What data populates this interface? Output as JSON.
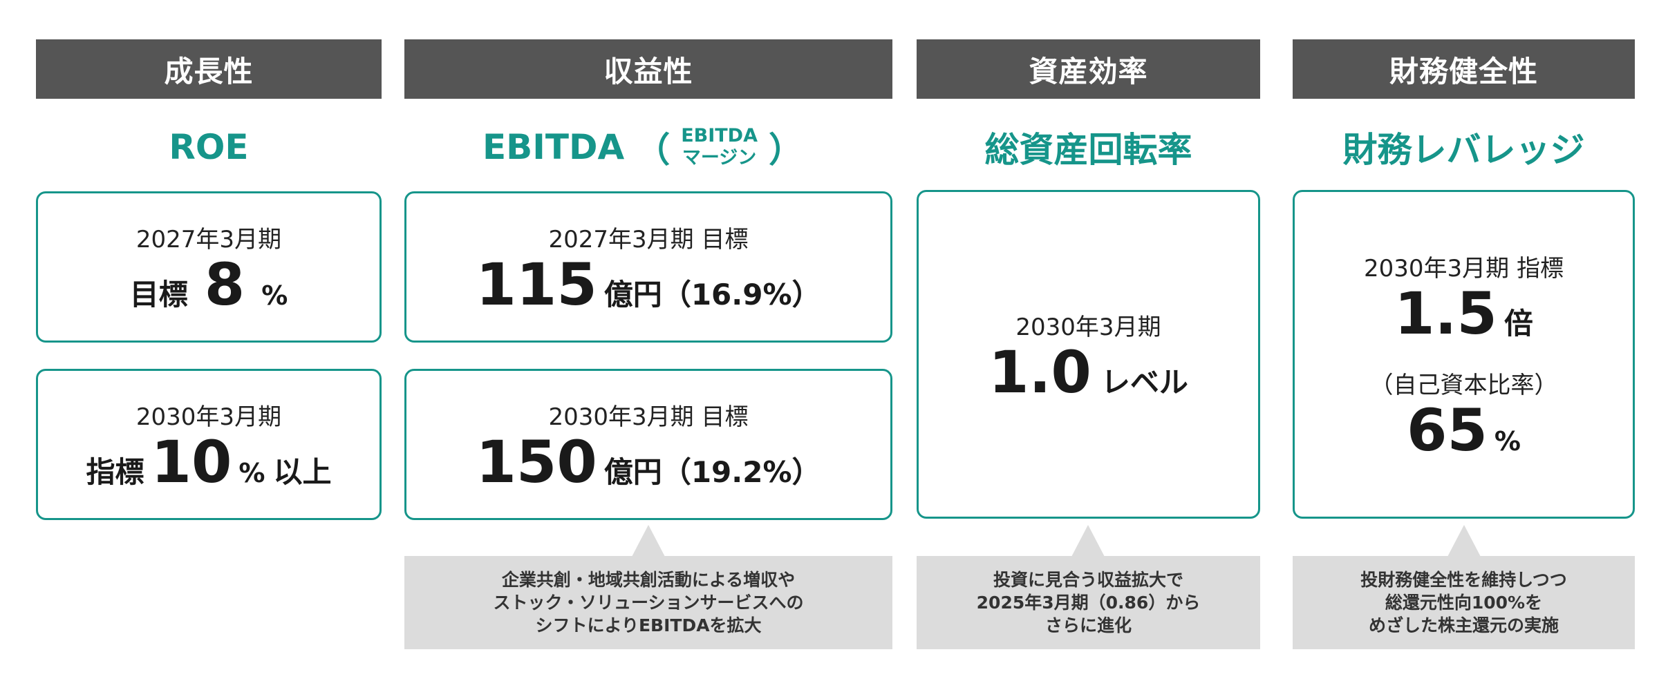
{
  "columns": {
    "growth": {
      "header": "成長性",
      "metric": "ROE",
      "box1": {
        "label": "2027年3月期",
        "prefix": "目標",
        "value": "8",
        "unit": "%"
      },
      "box2": {
        "label": "2030年3月期",
        "prefix": "指標",
        "value": "10",
        "unit": "%",
        "suffix": "以上"
      }
    },
    "profitability": {
      "header": "収益性",
      "metric": "EBITDA",
      "paren_open": "（",
      "paren_close": "）",
      "metric_sub1": "EBITDA",
      "metric_sub2": "マージン",
      "box1": {
        "label": "2027年3月期 目標",
        "value": "115",
        "unit": "億円",
        "extra": "（16.9%）"
      },
      "box2": {
        "label": "2030年3月期 目標",
        "value": "150",
        "unit": "億円",
        "extra": "（19.2%）"
      },
      "note": [
        "企業共創・地域共創活動による増収や",
        "ストック・ソリューションサービスへの",
        "シフトによりEBITDAを拡大"
      ]
    },
    "efficiency": {
      "header": "資産効率",
      "metric": "総資産回転率",
      "box": {
        "label": "2030年3月期",
        "value": "1.0",
        "unit": "レベル"
      },
      "note": [
        "投資に見合う収益拡大で",
        "2025年3月期（0.86）から",
        "さらに進化"
      ]
    },
    "soundness": {
      "header": "財務健全性",
      "metric": "財務レバレッジ",
      "box": {
        "label": "2030年3月期 指標",
        "value": "1.5",
        "unit": "倍",
        "sublabel": "（自己資本比率）",
        "value2": "65",
        "unit2": "%"
      },
      "note": [
        "投財務健全性を維持しつつ",
        "総還元性向100%を",
        "めざした株主還元の実施"
      ]
    }
  },
  "colors": {
    "accent": "#16958a",
    "header_bg": "#555555",
    "note_bg": "#dcdcdc"
  }
}
